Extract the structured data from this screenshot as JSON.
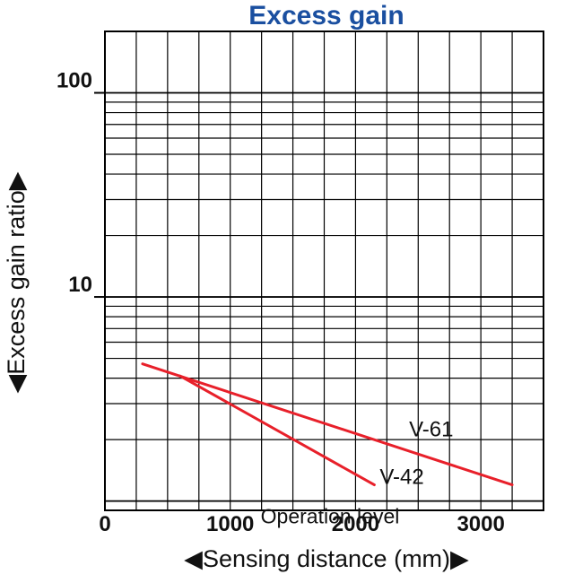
{
  "chart_data": {
    "type": "line",
    "title": "Excess gain",
    "xlabel": "Sensing distance (mm)",
    "ylabel": "Excess gain ratio",
    "x_scale": "linear",
    "y_scale": "log",
    "xlim": [
      0,
      3500
    ],
    "ylim": [
      0.9,
      200
    ],
    "x_ticks": [
      {
        "value": 0,
        "label": "0"
      },
      {
        "value": 1000,
        "label": "1000"
      },
      {
        "value": 2000,
        "label": "2000"
      },
      {
        "value": 3000,
        "label": "3000"
      }
    ],
    "y_ticks": [
      {
        "value": 10,
        "label": "10"
      },
      {
        "value": 100,
        "label": "100"
      }
    ],
    "grid": true,
    "series": [
      {
        "name": "V-61",
        "color": "#e8202a",
        "x": [
          300,
          3250
        ],
        "y": [
          4.7,
          1.2
        ]
      },
      {
        "name": "V-42",
        "color": "#e8202a",
        "x": [
          600,
          2150
        ],
        "y": [
          4.1,
          1.2
        ]
      }
    ],
    "annotations": [
      {
        "text": "Operation level",
        "y": 1.0
      }
    ]
  }
}
